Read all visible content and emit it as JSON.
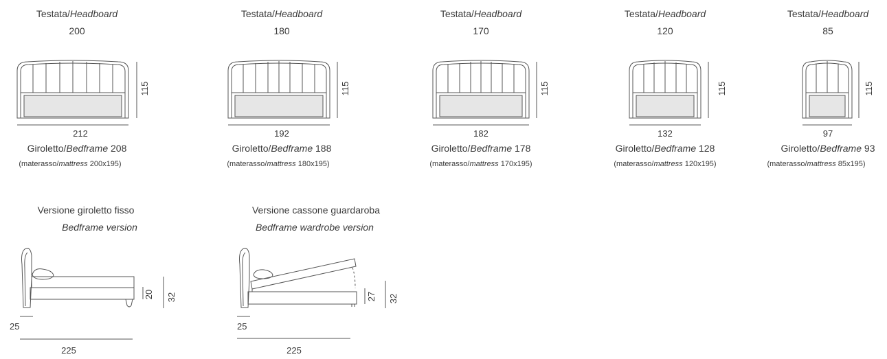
{
  "headboards": [
    {
      "title_it": "Testata/",
      "title_en": "Headboard",
      "size": "200",
      "height": "115",
      "width": "212",
      "frame_it": "Giroletto/",
      "frame_en": "Bedframe",
      "frame_size": "208",
      "mattress_pre": "(materasso/",
      "mattress_en": "mattress",
      "mattress_size": "200x195)"
    },
    {
      "title_it": "Testata/",
      "title_en": "Headboard",
      "size": "180",
      "height": "115",
      "width": "192",
      "frame_it": "Giroletto/",
      "frame_en": "Bedframe",
      "frame_size": "188",
      "mattress_pre": "(materasso/",
      "mattress_en": "mattress",
      "mattress_size": "180x195)"
    },
    {
      "title_it": "Testata/",
      "title_en": "Headboard",
      "size": "170",
      "height": "115",
      "width": "182",
      "frame_it": "Giroletto/",
      "frame_en": "Bedframe",
      "frame_size": "178",
      "mattress_pre": "(materasso/",
      "mattress_en": "mattress",
      "mattress_size": "170x195)"
    },
    {
      "title_it": "Testata/",
      "title_en": "Headboard",
      "size": "120",
      "height": "115",
      "width": "132",
      "frame_it": "Giroletto/",
      "frame_en": "Bedframe",
      "frame_size": "128",
      "mattress_pre": "(materasso/",
      "mattress_en": "mattress",
      "mattress_size": "120x195)"
    },
    {
      "title_it": "Testata/",
      "title_en": "Headboard",
      "size": "85",
      "height": "115",
      "width": "97",
      "frame_it": "Giroletto/",
      "frame_en": "Bedframe",
      "frame_size": "93",
      "mattress_pre": "(materasso/",
      "mattress_en": "mattress",
      "mattress_size": "85x195)"
    }
  ],
  "versions": [
    {
      "title_it": "Versione giroletto fisso",
      "title_en": "Bedframe version",
      "dim_inner": "20",
      "dim_outer": "32",
      "dim_head": "25",
      "dim_length": "225"
    },
    {
      "title_it": "Versione cassone guardaroba",
      "title_en": "Bedframe wardrobe version",
      "dim_inner": "27",
      "dim_outer": "32",
      "dim_head": "25",
      "dim_length": "225"
    }
  ],
  "colors": {
    "line": "#555555",
    "panel": "#e6e6e6"
  }
}
